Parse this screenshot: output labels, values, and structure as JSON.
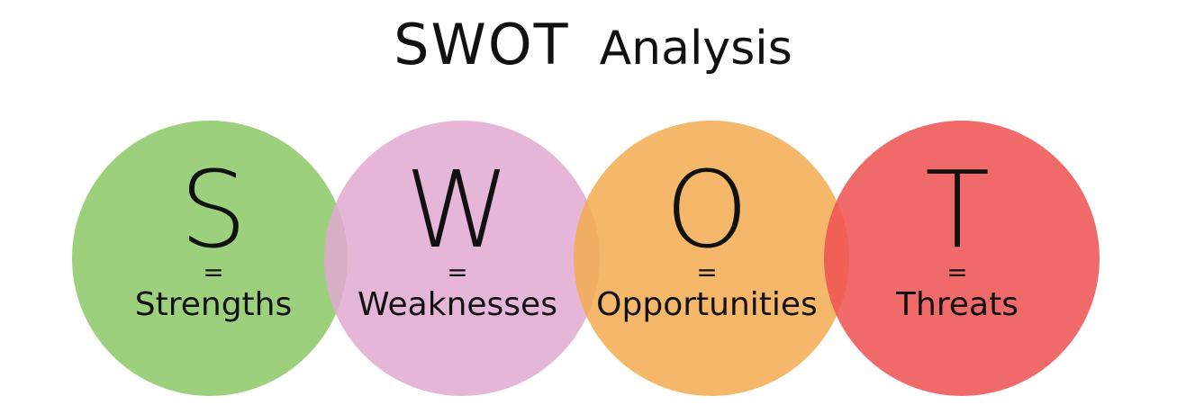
{
  "title": {
    "main": "SWOT",
    "sub": "Analysis"
  },
  "items": [
    {
      "letter": "S",
      "equals": "=",
      "word": "Strengths",
      "color": "#8cc866"
    },
    {
      "letter": "W",
      "equals": "=",
      "word": "Weaknesses",
      "color": "#e0a9d1"
    },
    {
      "letter": "O",
      "equals": "=",
      "word": "Opportunities",
      "color": "#f3ac50"
    },
    {
      "letter": "T",
      "equals": "=",
      "word": "Threats",
      "color": "#ee5050"
    }
  ]
}
